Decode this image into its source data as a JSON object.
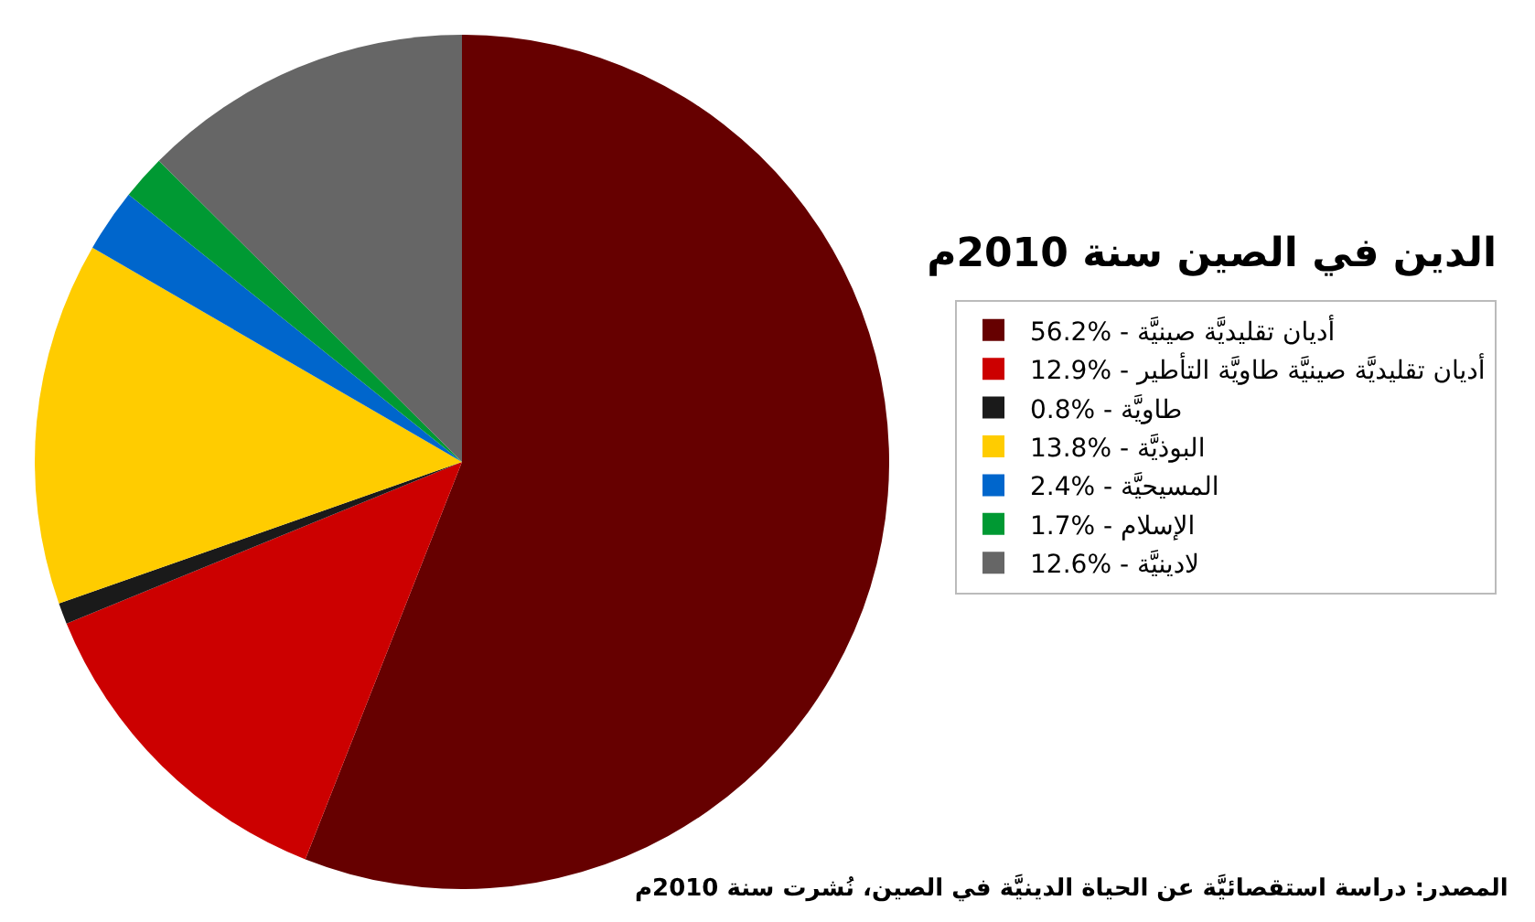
{
  "chart_data": {
    "type": "pie",
    "title": "الدين في الصين سنة 2010م",
    "categories": [
      "56.2% - أديان تقليديَّة صينيَّة",
      "12.9% - أديان تقليديَّة صينيَّة طاويَّة التأطير",
      "0.8% - طاويَّة",
      "13.8% - البوذيَّة",
      "2.4% - المسيحيَّة",
      "1.7% - الإسلام",
      "12.6% - لادينيَّة"
    ],
    "values": [
      56.2,
      12.9,
      0.8,
      13.8,
      2.4,
      1.7,
      12.6
    ],
    "colors": [
      "#660000",
      "#cc0000",
      "#1a1a1a",
      "#ffcc00",
      "#0066cc",
      "#009933",
      "#666666"
    ],
    "legend": "right",
    "annotations": [
      "المصدر: دراسة استقصائيَّة عن الحياة الدينيَّة في الصين، نُشرت سنة 2010م"
    ]
  }
}
